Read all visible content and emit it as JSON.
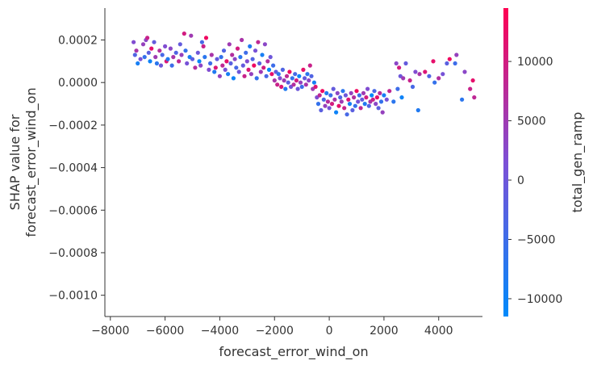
{
  "chart_data": {
    "type": "scatter",
    "title": "",
    "xlabel": "forecast_error_wind_on",
    "ylabel_lines": [
      "SHAP value for",
      "forecast_error_wind_on"
    ],
    "xlim": [
      -8200,
      5600
    ],
    "ylim": [
      -0.0011,
      0.00035
    ],
    "x_ticks": [
      -8000,
      -6000,
      -4000,
      -2000,
      0,
      2000,
      4000
    ],
    "x_tick_labels": [
      "−8000",
      "−6000",
      "−4000",
      "−2000",
      "0",
      "2000",
      "4000"
    ],
    "y_ticks": [
      0.0002,
      0.0,
      -0.0002,
      -0.0004,
      -0.0006,
      -0.0008,
      -0.001
    ],
    "y_tick_labels": [
      "0.0002",
      "0.0000",
      "−0.0002",
      "−0.0004",
      "−0.0006",
      "−0.0008",
      "−0.0010"
    ],
    "grid": false,
    "colorbar": {
      "label": "total_gen_ramp",
      "range": [
        -11500,
        14500
      ],
      "ticks": [
        10000,
        5000,
        0,
        -5000,
        -10000
      ],
      "tick_labels": [
        "10000",
        "5000",
        "0",
        "−5000",
        "−10000"
      ],
      "colors": [
        "#008afb",
        "#7c50d6",
        "#ff0052"
      ]
    },
    "points": [
      [
        -7150,
        0.00019,
        2000
      ],
      [
        -7100,
        0.00013,
        -3000
      ],
      [
        -7050,
        0.00015,
        6000
      ],
      [
        -7000,
        9e-05,
        -9000
      ],
      [
        -6900,
        0.00011,
        1000
      ],
      [
        -6800,
        0.00018,
        4000
      ],
      [
        -6750,
        0.00012,
        -6000
      ],
      [
        -6700,
        0.0002,
        3000
      ],
      [
        -6650,
        0.00021,
        9000
      ],
      [
        -6600,
        0.00014,
        -2000
      ],
      [
        -6550,
        0.0001,
        -10000
      ],
      [
        -6500,
        0.00016,
        12000
      ],
      [
        -6400,
        0.00019,
        -1000
      ],
      [
        -6350,
        0.00012,
        5000
      ],
      [
        -6300,
        9e-05,
        -7000
      ],
      [
        -6200,
        0.00015,
        7000
      ],
      [
        -6150,
        8e-05,
        0
      ],
      [
        -6100,
        0.00013,
        -4000
      ],
      [
        -6000,
        0.00017,
        2000
      ],
      [
        -5950,
        0.0001,
        11000
      ],
      [
        -5900,
        0.00011,
        -8000
      ],
      [
        -5800,
        0.00016,
        3000
      ],
      [
        -5750,
        8e-05,
        -5000
      ],
      [
        -5700,
        0.00012,
        6000
      ],
      [
        -5600,
        0.00014,
        -3000
      ],
      [
        -5500,
        0.0001,
        8000
      ],
      [
        -5450,
        0.00018,
        -1000
      ],
      [
        -5400,
        0.00013,
        4000
      ],
      [
        -5300,
        0.00023,
        10000
      ],
      [
        -5250,
        0.00015,
        -6000
      ],
      [
        -5200,
        9e-05,
        1000
      ],
      [
        -5100,
        0.00012,
        -9000
      ],
      [
        -5050,
        0.00022,
        5000
      ],
      [
        -5000,
        0.00011,
        -2000
      ],
      [
        -4900,
        7e-05,
        7000
      ],
      [
        -4800,
        0.00014,
        0
      ],
      [
        -4750,
        0.0001,
        -11000
      ],
      [
        -4700,
        8e-05,
        3000
      ],
      [
        -4650,
        0.00019,
        -4000
      ],
      [
        -4600,
        0.00017,
        9000
      ],
      [
        -4550,
        0.00012,
        -7000
      ],
      [
        -4500,
        0.00021,
        13000
      ],
      [
        -4400,
        6e-05,
        2000
      ],
      [
        -4350,
        9e-05,
        -5000
      ],
      [
        -4300,
        0.00013,
        6000
      ],
      [
        -4200,
        5e-05,
        -8000
      ],
      [
        -4150,
        7e-05,
        11000
      ],
      [
        -4100,
        0.00011,
        -1000
      ],
      [
        -4000,
        3e-05,
        4000
      ],
      [
        -3950,
        0.00012,
        -6000
      ],
      [
        -3900,
        8e-05,
        8000
      ],
      [
        -3850,
        0.00015,
        -3000
      ],
      [
        -3800,
        6e-05,
        1000
      ],
      [
        -3750,
        0.0001,
        12000
      ],
      [
        -3700,
        4e-05,
        -9000
      ],
      [
        -3650,
        0.00018,
        5000
      ],
      [
        -3600,
        9e-05,
        -2000
      ],
      [
        -3550,
        0.00013,
        7000
      ],
      [
        -3500,
        2e-05,
        -10000
      ],
      [
        -3450,
        0.00011,
        3000
      ],
      [
        -3400,
        7e-05,
        -4000
      ],
      [
        -3350,
        0.00016,
        10000
      ],
      [
        -3300,
        5e-05,
        0
      ],
      [
        -3250,
        0.00012,
        -7000
      ],
      [
        -3200,
        0.0002,
        6000
      ],
      [
        -3150,
        8e-05,
        -1000
      ],
      [
        -3100,
        3e-05,
        9000
      ],
      [
        -3050,
        0.00014,
        -5000
      ],
      [
        -3000,
        0.0001,
        2000
      ],
      [
        -2950,
        6e-05,
        11000
      ],
      [
        -2900,
        0.00017,
        -8000
      ],
      [
        -2850,
        4e-05,
        4000
      ],
      [
        -2800,
        0.00011,
        -3000
      ],
      [
        -2750,
        8e-05,
        13000
      ],
      [
        -2700,
        0.00015,
        1000
      ],
      [
        -2650,
        2e-05,
        -6000
      ],
      [
        -2600,
        0.00019,
        8000
      ],
      [
        -2550,
        9e-05,
        -2000
      ],
      [
        -2500,
        5e-05,
        5000
      ],
      [
        -2450,
        0.00013,
        -9000
      ],
      [
        -2400,
        7e-05,
        10000
      ],
      [
        -2350,
        0.00018,
        3000
      ],
      [
        -2300,
        3e-05,
        -4000
      ],
      [
        -2250,
        0.0001,
        7000
      ],
      [
        -2200,
        6e-05,
        -11000
      ],
      [
        -2150,
        0.00012,
        0
      ],
      [
        -2100,
        4e-05,
        12000
      ],
      [
        -2050,
        8e-05,
        -5000
      ],
      [
        -2000,
        1e-05,
        6000
      ],
      [
        -1950,
        5e-05,
        -1000
      ],
      [
        -1900,
        -1e-05,
        9000
      ],
      [
        -1850,
        4e-05,
        -7000
      ],
      [
        -1800,
        2e-05,
        2000
      ],
      [
        -1750,
        -2e-05,
        11000
      ],
      [
        -1700,
        6e-05,
        -3000
      ],
      [
        -1650,
        1e-05,
        5000
      ],
      [
        -1600,
        -3e-05,
        -8000
      ],
      [
        -1550,
        3e-05,
        8000
      ],
      [
        -1500,
        0.0,
        -2000
      ],
      [
        -1450,
        5e-05,
        13000
      ],
      [
        -1400,
        -2e-05,
        1000
      ],
      [
        -1350,
        2e-05,
        -6000
      ],
      [
        -1300,
        -1e-05,
        7000
      ],
      [
        -1250,
        4e-05,
        -4000
      ],
      [
        -1200,
        1e-05,
        10000
      ],
      [
        -1150,
        -3e-05,
        0
      ],
      [
        -1100,
        3e-05,
        -10000
      ],
      [
        -1050,
        0.0,
        4000
      ],
      [
        -1000,
        -2e-05,
        -5000
      ],
      [
        -950,
        6e-05,
        12000
      ],
      [
        -900,
        2e-05,
        -1000
      ],
      [
        -850,
        -1e-05,
        6000
      ],
      [
        -800,
        4e-05,
        -7000
      ],
      [
        -750,
        1e-05,
        3000
      ],
      [
        -700,
        8e-05,
        9000
      ],
      [
        -650,
        3e-05,
        -3000
      ],
      [
        -600,
        -3e-05,
        5000
      ],
      [
        -550,
        0.0,
        -9000
      ],
      [
        -500,
        -2e-05,
        11000
      ],
      [
        -450,
        -7e-05,
        2000
      ],
      [
        -400,
        -0.0001,
        -6000
      ],
      [
        -350,
        -6e-05,
        8000
      ],
      [
        -300,
        -0.00013,
        -2000
      ],
      [
        -250,
        -4e-05,
        13000
      ],
      [
        -200,
        -8e-05,
        -4000
      ],
      [
        -150,
        -0.00011,
        4000
      ],
      [
        -100,
        -5e-05,
        -8000
      ],
      [
        -50,
        -9e-05,
        7000
      ],
      [
        0,
        -0.00012,
        1000
      ],
      [
        50,
        -6e-05,
        -5000
      ],
      [
        100,
        -0.0001,
        10000
      ],
      [
        150,
        -3e-05,
        -1000
      ],
      [
        200,
        -8e-05,
        6000
      ],
      [
        250,
        -0.00014,
        -10000
      ],
      [
        300,
        -5e-05,
        3000
      ],
      [
        350,
        -0.00011,
        12000
      ],
      [
        400,
        -7e-05,
        -3000
      ],
      [
        450,
        -9e-05,
        5000
      ],
      [
        500,
        -4e-05,
        -7000
      ],
      [
        550,
        -0.00012,
        9000
      ],
      [
        600,
        -6e-05,
        0
      ],
      [
        650,
        -0.00015,
        -4000
      ],
      [
        700,
        -8e-05,
        11000
      ],
      [
        750,
        -0.0001,
        -9000
      ],
      [
        800,
        -5e-05,
        4000
      ],
      [
        850,
        -0.00013,
        -2000
      ],
      [
        900,
        -7e-05,
        7000
      ],
      [
        950,
        -0.00011,
        -6000
      ],
      [
        1000,
        -4e-05,
        13000
      ],
      [
        1050,
        -9e-05,
        1000
      ],
      [
        1100,
        -6e-05,
        -5000
      ],
      [
        1150,
        -0.00012,
        8000
      ],
      [
        1200,
        -8e-05,
        -1000
      ],
      [
        1250,
        -5e-05,
        5000
      ],
      [
        1300,
        -0.0001,
        -8000
      ],
      [
        1350,
        -7e-05,
        10000
      ],
      [
        1400,
        -3e-05,
        2000
      ],
      [
        1450,
        -0.00011,
        -3000
      ],
      [
        1500,
        -9e-05,
        6000
      ],
      [
        1550,
        -6e-05,
        -11000
      ],
      [
        1600,
        -8e-05,
        9000
      ],
      [
        1650,
        -4e-05,
        -4000
      ],
      [
        1700,
        -0.0001,
        3000
      ],
      [
        1750,
        -7e-05,
        12000
      ],
      [
        1800,
        -0.00012,
        -2000
      ],
      [
        1850,
        -5e-05,
        7000
      ],
      [
        1900,
        -9e-05,
        -6000
      ],
      [
        1950,
        -0.00014,
        4000
      ],
      [
        2000,
        -6e-05,
        -9000
      ],
      [
        2100,
        -8e-05,
        1000
      ],
      [
        2200,
        -4e-05,
        8000
      ],
      [
        2350,
        -9e-05,
        -7000
      ],
      [
        2450,
        9e-05,
        3000
      ],
      [
        2500,
        -3e-05,
        -5000
      ],
      [
        2550,
        7e-05,
        10000
      ],
      [
        2600,
        3e-05,
        0
      ],
      [
        2650,
        -7e-05,
        -10000
      ],
      [
        2700,
        2e-05,
        5000
      ],
      [
        2800,
        9e-05,
        -1000
      ],
      [
        2950,
        1e-05,
        9000
      ],
      [
        3050,
        -2e-05,
        -4000
      ],
      [
        3150,
        5e-05,
        2000
      ],
      [
        3250,
        -0.00013,
        -8000
      ],
      [
        3300,
        4e-05,
        6000
      ],
      [
        3500,
        5e-05,
        11000
      ],
      [
        3650,
        3e-05,
        -3000
      ],
      [
        3800,
        0.0001,
        12000
      ],
      [
        3850,
        0.0,
        -6000
      ],
      [
        4000,
        2e-05,
        7000
      ],
      [
        4150,
        4e-05,
        1000
      ],
      [
        4300,
        9e-05,
        -2000
      ],
      [
        4400,
        0.00011,
        13000
      ],
      [
        4600,
        9e-05,
        -5000
      ],
      [
        4650,
        0.00013,
        4000
      ],
      [
        4850,
        -8e-05,
        -7000
      ],
      [
        4950,
        5e-05,
        3000
      ],
      [
        5150,
        -3e-05,
        9000
      ],
      [
        5250,
        1e-05,
        12000
      ],
      [
        5300,
        -7e-05,
        8000
      ]
    ]
  }
}
